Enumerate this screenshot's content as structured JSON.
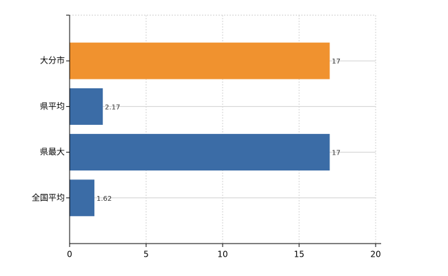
{
  "chart_data": {
    "type": "bar",
    "orientation": "horizontal",
    "categories": [
      "大分市",
      "県平均",
      "県最大",
      "全国平均"
    ],
    "values": [
      17,
      2.17,
      17,
      1.62
    ],
    "colors": [
      "#f0922f",
      "#3b6ca6",
      "#3b6ca6",
      "#3b6ca6"
    ],
    "xlim": [
      0,
      20
    ],
    "xticks": [
      0,
      5,
      10,
      15,
      20
    ],
    "grid": true
  }
}
